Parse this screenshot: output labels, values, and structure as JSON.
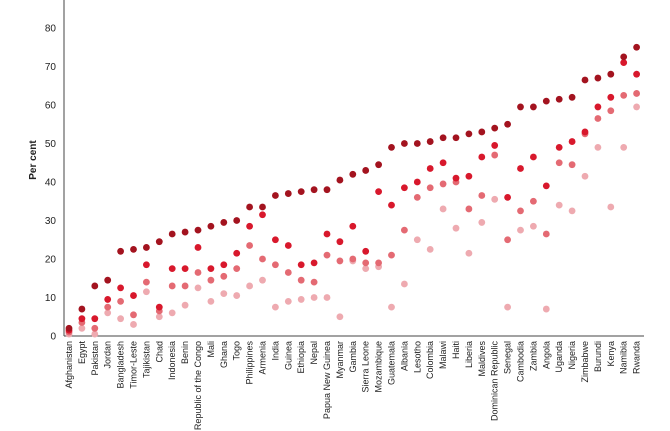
{
  "chart_data": {
    "type": "scatter",
    "ylabel": "Per cent",
    "ylim": [
      0,
      80
    ],
    "yticks": [
      0,
      10,
      20,
      30,
      40,
      50,
      60,
      70,
      80
    ],
    "grid": false,
    "colors": [
      "#a3131f",
      "#d8182c",
      "#e46a73",
      "#eeaab0"
    ],
    "categories": [
      "Afghanistan",
      "Egypt",
      "Pakistan",
      "Jordan",
      "Bangladesh",
      "Timor-Leste",
      "Tajikistan",
      "Chad",
      "Indonesia",
      "Benin",
      "Republic of the Congo",
      "Mali",
      "Ghana",
      "Togo",
      "Philippines",
      "Armenia",
      "India",
      "Guinea",
      "Ethiopia",
      "Nepal",
      "Papua New Guinea",
      "Myanmar",
      "Gambia",
      "Sierra Leone",
      "Mozambique",
      "Guatemala",
      "Albania",
      "Lesotho",
      "Colombia",
      "Malawi",
      "Haiti",
      "Liberia",
      "Maldives",
      "Dominican Republic",
      "Senegal",
      "Cambodia",
      "Zambia",
      "Angola",
      "Uganda",
      "Nigeria",
      "Zimbabwe",
      "Burundi",
      "Kenya",
      "Namibia",
      "Rwanda"
    ],
    "series": [
      {
        "values": [
          2,
          7,
          13,
          14.5,
          22,
          22.5,
          23,
          24.5,
          26.5,
          27,
          27.5,
          28.5,
          29.5,
          30,
          33.5,
          33.5,
          36.5,
          37,
          37.5,
          38,
          38,
          40.5,
          42,
          43,
          44.5,
          49,
          50,
          50,
          50.5,
          51.5,
          51.5,
          52.5,
          53,
          54,
          55,
          59.5,
          59.5,
          61,
          61.5,
          62,
          66.5,
          67,
          68,
          72.5,
          75
        ]
      },
      {
        "values": [
          1.5,
          4.5,
          4.5,
          9.5,
          12.5,
          10.5,
          18.5,
          7.5,
          17.5,
          17.5,
          23,
          17.5,
          18.5,
          21.5,
          28.5,
          31.5,
          25,
          23.5,
          18.5,
          19,
          26.5,
          24.5,
          28.5,
          22,
          37.5,
          34,
          38.5,
          40,
          43.5,
          45,
          41,
          41.5,
          46.5,
          49.5,
          36,
          43.5,
          46.5,
          39,
          49,
          50.5,
          53,
          59.5,
          62,
          71,
          68
        ]
      },
      {
        "values": [
          1,
          3.5,
          2,
          7.5,
          9,
          5.5,
          14,
          6.5,
          13,
          13,
          16.5,
          14.5,
          15.5,
          17.5,
          23.5,
          20,
          18.5,
          16.5,
          14.5,
          14,
          21,
          19.5,
          20,
          19,
          19,
          21,
          27.5,
          36,
          38.5,
          39.5,
          40,
          33,
          36.5,
          47,
          25,
          32.5,
          35,
          26.5,
          45,
          44.5,
          52.5,
          56.5,
          58.5,
          62.5,
          63
        ]
      },
      {
        "values": [
          0.5,
          2,
          0.5,
          6,
          4.5,
          3,
          11.5,
          5,
          6,
          8,
          12.5,
          9,
          11,
          10.5,
          13,
          14.5,
          7.5,
          9,
          9.5,
          10,
          10,
          5,
          19.5,
          17.5,
          18,
          7.5,
          13.5,
          25,
          22.5,
          33,
          28,
          21.5,
          29.5,
          35.5,
          7.5,
          27.5,
          28.5,
          7,
          34,
          32.5,
          41.5,
          49,
          33.5,
          49,
          59.5
        ]
      }
    ]
  }
}
